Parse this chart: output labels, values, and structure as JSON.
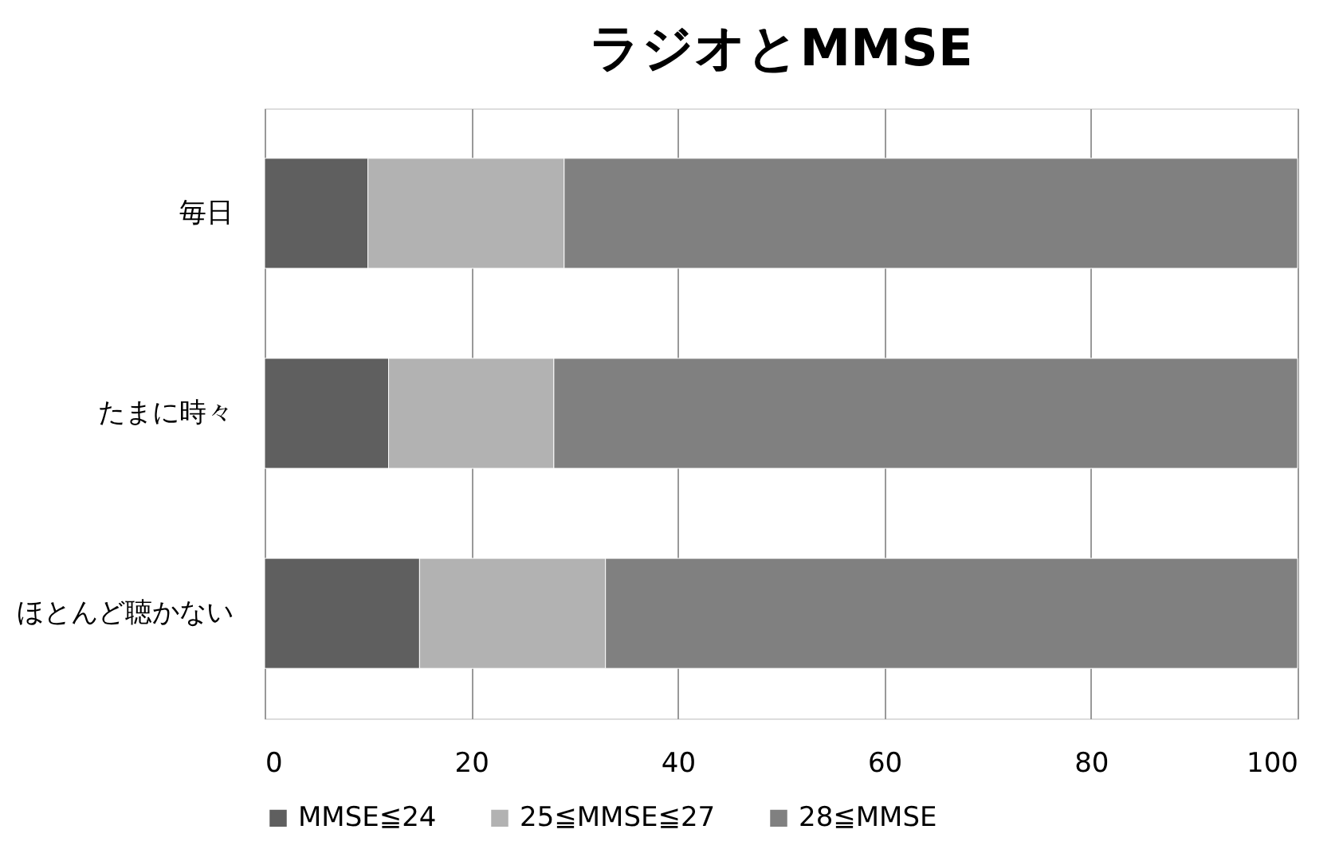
{
  "chart_data": {
    "type": "bar",
    "orientation": "horizontal",
    "stacked": true,
    "title": "ラジオとMMSE",
    "categories": [
      "毎日",
      "たまに時々",
      "ほとんど聴かない"
    ],
    "series": [
      {
        "name": "MMSE≦24",
        "color": "#5f5f5f",
        "values": [
          10,
          12,
          15
        ]
      },
      {
        "name": "25≦MMSE≦27",
        "color": "#b2b2b2",
        "values": [
          19,
          16,
          18
        ]
      },
      {
        "name": "28≦MMSE",
        "color": "#808080",
        "values": [
          71,
          72,
          67
        ]
      }
    ],
    "xlim": [
      0,
      100
    ],
    "xticks": [
      0,
      20,
      40,
      60,
      80,
      100
    ],
    "grid": "x",
    "legend": "bottom"
  }
}
